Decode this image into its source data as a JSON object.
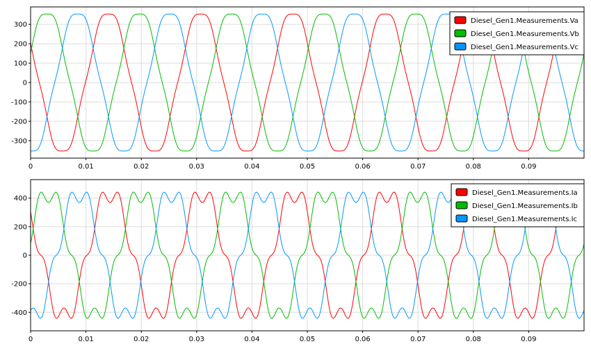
{
  "chart_data": [
    {
      "type": "line",
      "xlim": [
        0,
        0.1
      ],
      "ylim": [
        -390,
        390
      ],
      "x_ticks": [
        "0",
        "0.01",
        "0.02",
        "0.03",
        "0.04",
        "0.05",
        "0.06",
        "0.07",
        "0.08",
        "0.09"
      ],
      "x_tick_values": [
        0,
        0.01,
        0.02,
        0.03,
        0.04,
        0.05,
        0.06,
        0.07,
        0.08,
        0.09
      ],
      "y_ticks": [
        "300",
        "200",
        "100",
        "0",
        "-100",
        "-200",
        "-300"
      ],
      "y_tick_values": [
        300,
        200,
        100,
        0,
        -100,
        -200,
        -300
      ],
      "grid": true,
      "legend_position": "top-right",
      "waveform": {
        "amplitude": 368,
        "frequency_hz": 60,
        "harmonic5_ratio": 0.04,
        "samples": 600
      },
      "series": [
        {
          "name": "Diesel_Gen1.Measurements.Va",
          "color": "#ff0000",
          "phase_deg": 146
        },
        {
          "name": "Diesel_Gen1.Measurements.Vb",
          "color": "#00bb00",
          "phase_deg": 26
        },
        {
          "name": "Diesel_Gen1.Measurements.Vc",
          "color": "#0096ff",
          "phase_deg": -94
        }
      ]
    },
    {
      "type": "line",
      "xlim": [
        0,
        0.1
      ],
      "ylim": [
        -530,
        530
      ],
      "x_ticks": [
        "0",
        "0.01",
        "0.02",
        "0.03",
        "0.04",
        "0.05",
        "0.06",
        "0.07",
        "0.08",
        "0.09"
      ],
      "x_tick_values": [
        0,
        0.01,
        0.02,
        0.03,
        0.04,
        0.05,
        0.06,
        0.07,
        0.08,
        0.09
      ],
      "y_ticks": [
        "400",
        "200",
        "0",
        "-200",
        "-400"
      ],
      "y_tick_values": [
        400,
        200,
        0,
        -200,
        -400
      ],
      "grid": true,
      "legend_position": "top-right",
      "waveform": {
        "amplitude": 440,
        "frequency_hz": 60,
        "harmonic5_ratio": 0.16,
        "samples": 600
      },
      "series": [
        {
          "name": "Diesel_Gen1.Measurements.Ia",
          "color": "#ff0000",
          "phase_deg": 140
        },
        {
          "name": "Diesel_Gen1.Measurements.Ib",
          "color": "#00bb00",
          "phase_deg": 20
        },
        {
          "name": "Diesel_Gen1.Measurements.Ic",
          "color": "#0096ff",
          "phase_deg": -100
        }
      ]
    }
  ]
}
